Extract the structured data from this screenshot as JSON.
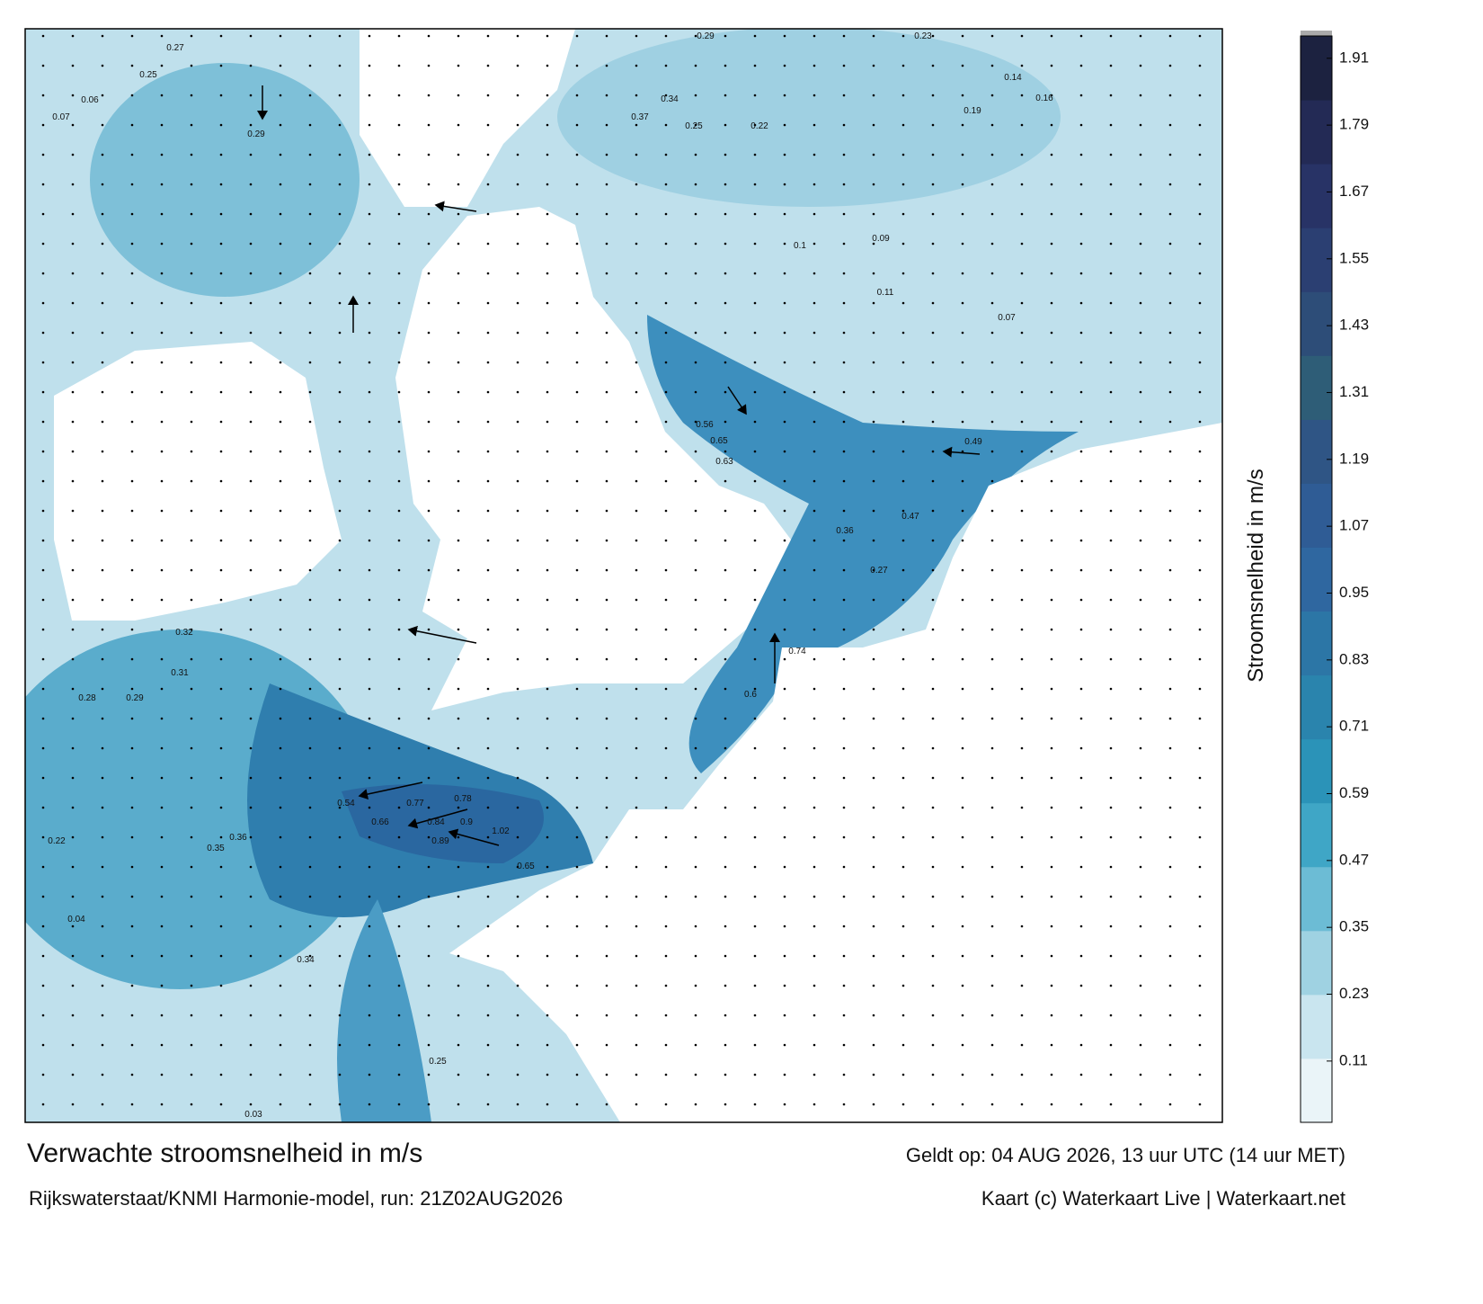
{
  "map": {
    "title": "Verwachte stroomsnelheid in m/s",
    "subtitle": "Rijkswaterstaat/KNMI Harmonie-model, run: 21Z02AUG2026",
    "valid_time": "Geldt op: 04 AUG 2026, 13 uur UTC (14 uur MET)",
    "credit": "Kaart (c) Waterkaart Live | Waterkaart.net",
    "labels": [
      "0.27",
      "0.25",
      "0.07",
      "0.06",
      "0.29",
      "0.34",
      "0.37",
      "0.25",
      "0.22",
      "0.14",
      "0.16",
      "0.19",
      "0.23",
      "0.29",
      "0.1",
      "0.09",
      "0.11",
      "0.07",
      "0.56",
      "0.65",
      "0.63",
      "0.49",
      "0.32",
      "0.31",
      "0.28",
      "0.29",
      "0.54",
      "0.66",
      "0.84",
      "0.89",
      "0.9",
      "0.77",
      "0.78",
      "1.02",
      "0.65",
      "0.36",
      "0.35",
      "0.22",
      "0.34",
      "0.25",
      "0.04",
      "0.03",
      "0.47",
      "0.36",
      "0.27",
      "0.74",
      "0.6"
    ]
  },
  "colorbar": {
    "label": "Stroomsnelheid in m/s",
    "lim": [
      0,
      1.95
    ],
    "ticks": [
      0.11,
      0.23,
      0.35,
      0.47,
      0.59,
      0.71,
      0.83,
      0.95,
      1.07,
      1.19,
      1.31,
      1.43,
      1.55,
      1.67,
      1.79,
      1.91
    ],
    "colors": [
      "#eaf4f8",
      "#c9e5ef",
      "#9fd2e2",
      "#6cbcd5",
      "#3fa6c6",
      "#2b93b8",
      "#2a84ad",
      "#2c76a6",
      "#2f67a0",
      "#2f5c95",
      "#2f5585",
      "#2e5d77",
      "#2d4d78",
      "#2b3f72",
      "#283366",
      "#232a55",
      "#1c2240"
    ]
  }
}
